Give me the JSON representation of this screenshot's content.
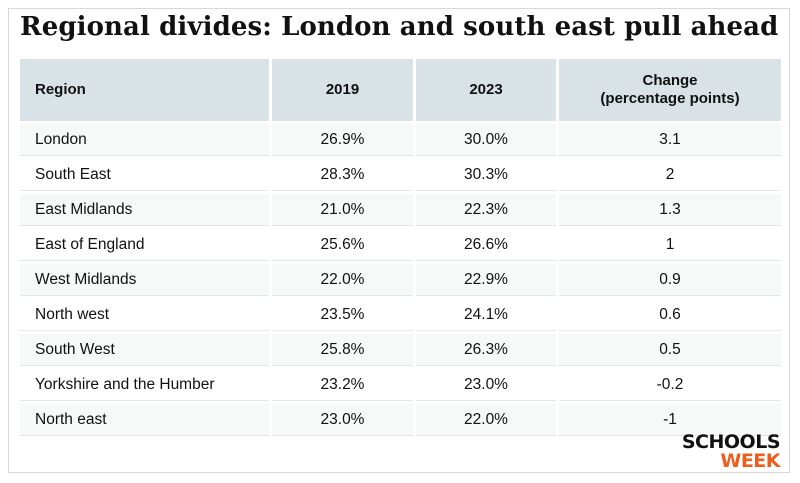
{
  "title": "Regional divides: London and south east pull ahead",
  "table": {
    "headers": {
      "region": "Region",
      "y2019": "2019",
      "y2023": "2023",
      "change_line1": "Change",
      "change_line2": "(percentage points)"
    },
    "rows": [
      {
        "region": "London",
        "y2019": "26.9%",
        "y2023": "30.0%",
        "change": "3.1"
      },
      {
        "region": "South East",
        "y2019": "28.3%",
        "y2023": "30.3%",
        "change": "2"
      },
      {
        "region": "East Midlands",
        "y2019": "21.0%",
        "y2023": "22.3%",
        "change": "1.3"
      },
      {
        "region": "East of England",
        "y2019": "25.6%",
        "y2023": "26.6%",
        "change": "1"
      },
      {
        "region": "West Midlands",
        "y2019": "22.0%",
        "y2023": "22.9%",
        "change": "0.9"
      },
      {
        "region": "North west",
        "y2019": "23.5%",
        "y2023": "24.1%",
        "change": "0.6"
      },
      {
        "region": "South West",
        "y2019": "25.8%",
        "y2023": "26.3%",
        "change": "0.5"
      },
      {
        "region": "Yorkshire and the Humber",
        "y2019": "23.2%",
        "y2023": "23.0%",
        "change": "-0.2"
      },
      {
        "region": "North east",
        "y2019": "23.0%",
        "y2023": "22.0%",
        "change": "-1"
      }
    ]
  },
  "logo": {
    "line1": "SCHOOLS",
    "line2": "WEEK"
  },
  "colors": {
    "header_bg": "#d9e2e6",
    "logo_accent": "#ee5d1c"
  }
}
